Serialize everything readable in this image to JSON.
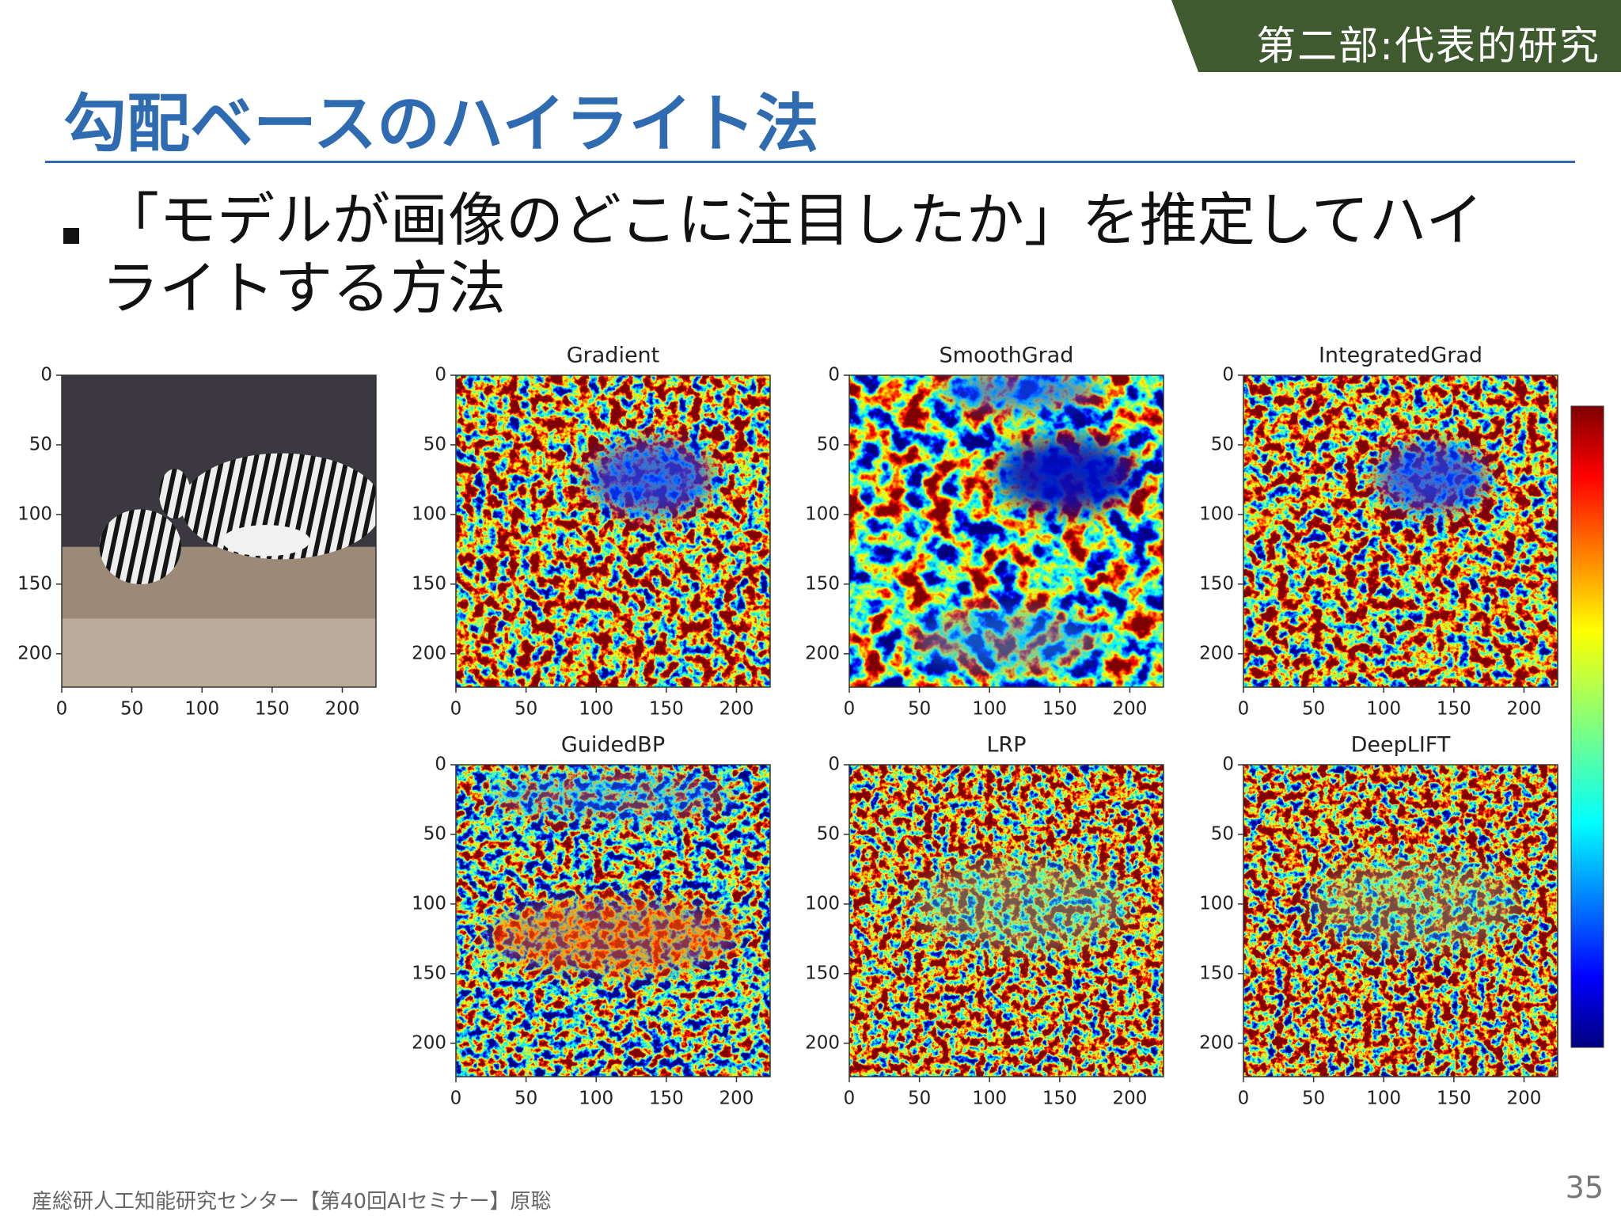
{
  "header": {
    "section": "第二部:代表的研究"
  },
  "title": "勾配ベースのハイライト法",
  "bullets": [
    "「モデルが画像のどこに注目したか」を推定してハイライトする方法"
  ],
  "figure": {
    "panels": [
      {
        "title": "Gradient"
      },
      {
        "title": "SmoothGrad"
      },
      {
        "title": "IntegratedGrad"
      },
      {
        "title": "GuidedBP"
      },
      {
        "title": "LRP"
      },
      {
        "title": "DeepLIFT"
      }
    ],
    "xlim": [
      0,
      224
    ],
    "ylim": [
      0,
      224
    ],
    "xticks": [
      0,
      50,
      100,
      150,
      200
    ],
    "yticks": [
      0,
      50,
      100,
      150,
      200
    ]
  },
  "footer": {
    "credit": "産総研人工知能研究センター【第40回AIセミナー】原聡",
    "page": 35
  }
}
